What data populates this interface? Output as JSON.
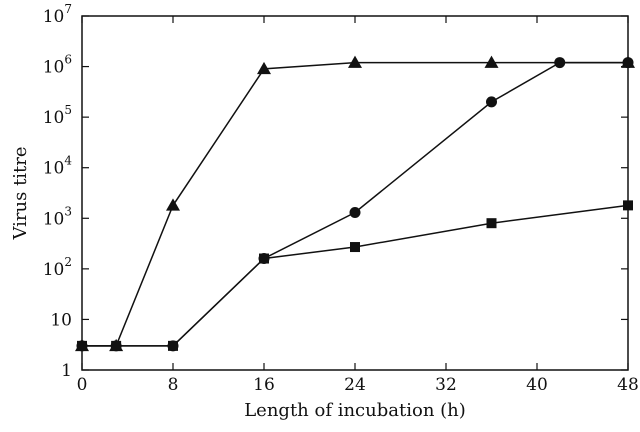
{
  "chart_data": {
    "type": "line",
    "title": "",
    "xlabel": "Length of incubation (h)",
    "ylabel": "Virus titre",
    "xlim": [
      0,
      48
    ],
    "ylim_log10": [
      0,
      7
    ],
    "y_scale": "log",
    "grid": false,
    "legend": "none",
    "x_ticks": [
      "0",
      "8",
      "16",
      "24",
      "32",
      "40",
      "48"
    ],
    "y_ticks": [
      {
        "base": "1",
        "exp": ""
      },
      {
        "base": "10",
        "exp": ""
      },
      {
        "base": "10",
        "exp": "2"
      },
      {
        "base": "10",
        "exp": "3"
      },
      {
        "base": "10",
        "exp": "4"
      },
      {
        "base": "10",
        "exp": "5"
      },
      {
        "base": "10",
        "exp": "6"
      },
      {
        "base": "10",
        "exp": "7"
      }
    ],
    "series": [
      {
        "marker": "triangle",
        "x": [
          0,
          3,
          8,
          16,
          24,
          36,
          48
        ],
        "y": [
          3,
          3,
          1800,
          900000,
          1200000,
          1200000,
          1200000
        ]
      },
      {
        "marker": "circle",
        "x": [
          0,
          3,
          8,
          16,
          24,
          36,
          42,
          48
        ],
        "y": [
          3,
          3,
          3,
          160,
          1300,
          200000,
          1200000,
          1200000
        ]
      },
      {
        "marker": "square",
        "x": [
          0,
          3,
          8,
          16,
          24,
          36,
          48
        ],
        "y": [
          3,
          3,
          3,
          160,
          270,
          800,
          1800
        ]
      }
    ],
    "colors": {
      "line": "#111111",
      "marker": "#111111"
    }
  }
}
